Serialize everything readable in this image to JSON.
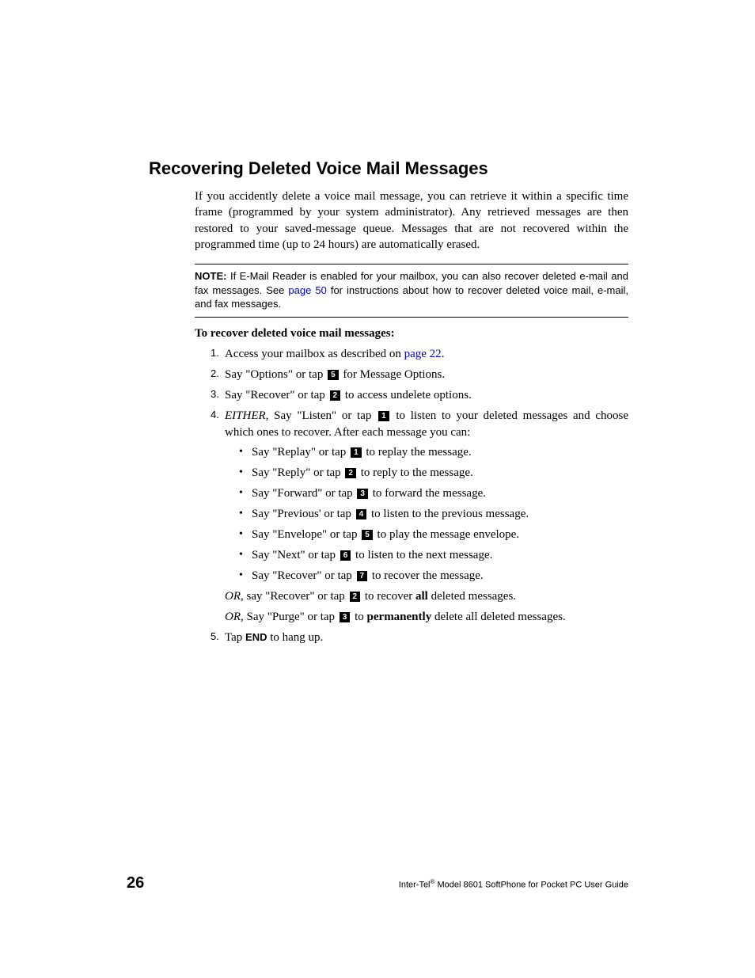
{
  "heading": "Recovering Deleted Voice Mail Messages",
  "intro": "If you accidently delete a voice mail message, you can retrieve it within a specific time frame (programmed by your system administrator). Any retrieved messages are then restored to your saved-message queue. Messages that are not recovered within the programmed time (up to 24 hours) are automatically erased.",
  "note": {
    "label": "NOTE:",
    "pre": " If E-Mail Reader is enabled for your mailbox, you can also recover deleted e-mail and fax messages. See ",
    "link": "page 50",
    "post": " for instructions about how to recover deleted voice mail, e-mail, and fax messages."
  },
  "sub_heading": "To recover deleted voice mail messages:",
  "steps": {
    "s1": {
      "num": "1.",
      "pre": "Access your mailbox as described on ",
      "link": "page 22",
      "post": "."
    },
    "s2": {
      "num": "2.",
      "pre": "Say \"Options\" or tap ",
      "key": "5",
      "post": " for Message Options."
    },
    "s3": {
      "num": "3.",
      "pre": "Say \"Recover\" or tap ",
      "key": "2",
      "post": " to access undelete options."
    },
    "s4": {
      "num": "4.",
      "either": "EITHER,",
      "pre": " Say \"Listen\" or tap ",
      "key": "1",
      "post": " to listen to your deleted messages and choose which ones to recover. After each message you can:",
      "bullets": {
        "b1": {
          "pre": "Say \"Replay\" or tap ",
          "key": "1",
          "post": " to replay the message."
        },
        "b2": {
          "pre": "Say \"Reply\" or tap ",
          "key": "2",
          "post": " to reply to the message."
        },
        "b3": {
          "pre": "Say \"Forward\" or tap ",
          "key": "3",
          "post": " to forward the message."
        },
        "b4": {
          "pre": "Say \"Previous' or tap ",
          "key": "4",
          "post": " to listen to the previous message."
        },
        "b5": {
          "pre": "Say \"Envelope\" or tap ",
          "key": "5",
          "post": " to play the message envelope."
        },
        "b6": {
          "pre": "Say \"Next\" or tap ",
          "key": "6",
          "post": " to listen to the next message."
        },
        "b7": {
          "pre": "Say \"Recover\" or tap ",
          "key": "7",
          "post": " to recover the message."
        }
      },
      "or1": {
        "or": "OR,",
        "pre": " say \"Recover\" or tap ",
        "key": "2",
        "mid": " to recover ",
        "bold": "all",
        "post": " deleted messages."
      },
      "or2": {
        "or": "OR,",
        "pre": " Say \"Purge\" or tap ",
        "key": "3",
        "mid": " to ",
        "bold": "permanently",
        "post": " delete all deleted messages."
      }
    },
    "s5": {
      "num": "5.",
      "pre": "Tap ",
      "end": "END",
      "post": " to hang up."
    }
  },
  "footer": {
    "page": "26",
    "brand_pre": "Inter-Tel",
    "brand_sup": "®",
    "brand_post": " Model 8601 SoftPhone for Pocket PC User Guide"
  },
  "colors": {
    "link": "#0000cc",
    "text": "#000000",
    "bg": "#ffffff",
    "keycap_bg": "#000000",
    "keycap_fg": "#ffffff"
  }
}
